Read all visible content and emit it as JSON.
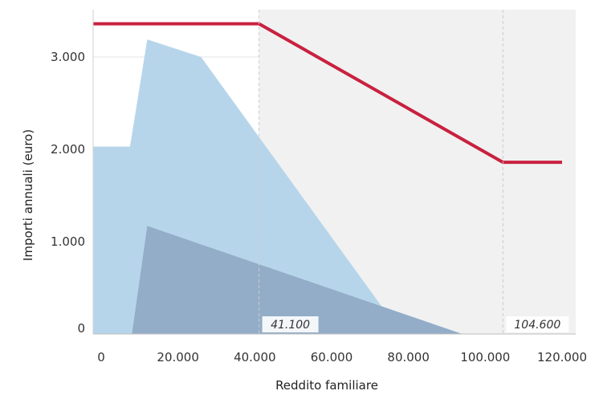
{
  "chart_data": {
    "type": "area",
    "xlabel": "Reddito familiare",
    "ylabel": "Importi annuali (euro)",
    "xlim": [
      0,
      122000
    ],
    "ylim": [
      0,
      3500
    ],
    "x_ticks": [
      0,
      20000,
      40000,
      60000,
      80000,
      100000,
      120000
    ],
    "x_tick_labels": [
      "0",
      "20.000",
      "40.000",
      "60.000",
      "80.000",
      "100.000",
      "120.000"
    ],
    "y_ticks": [
      0,
      1000,
      2000,
      3000
    ],
    "y_tick_labels": [
      "0",
      "1.000",
      "2.000",
      "3.000"
    ],
    "grid": "horizontal",
    "shaded_band": {
      "x_start": 41100,
      "x_end": 104600,
      "color": "#f1f1f1"
    },
    "reference_lines": [
      {
        "x": 41100,
        "label": "41.100"
      },
      {
        "x": 104600,
        "label": "104.600"
      }
    ],
    "series": [
      {
        "type": "area",
        "color": "#b7d5ea",
        "points": [
          [
            0,
            2030
          ],
          [
            7500,
            2030
          ],
          [
            12000,
            3190
          ],
          [
            26000,
            3000
          ],
          [
            73000,
            300
          ],
          [
            94000,
            0
          ],
          [
            120000,
            0
          ]
        ]
      },
      {
        "type": "area",
        "color": "#93adc8",
        "points": [
          [
            0,
            0
          ],
          [
            8000,
            0
          ],
          [
            12000,
            1170
          ],
          [
            73000,
            300
          ],
          [
            94000,
            0
          ],
          [
            120000,
            0
          ]
        ]
      },
      {
        "type": "line",
        "color": "#c8213f",
        "points": [
          [
            0,
            3360
          ],
          [
            41100,
            3360
          ],
          [
            104600,
            1860
          ],
          [
            120000,
            1860
          ]
        ]
      }
    ]
  }
}
